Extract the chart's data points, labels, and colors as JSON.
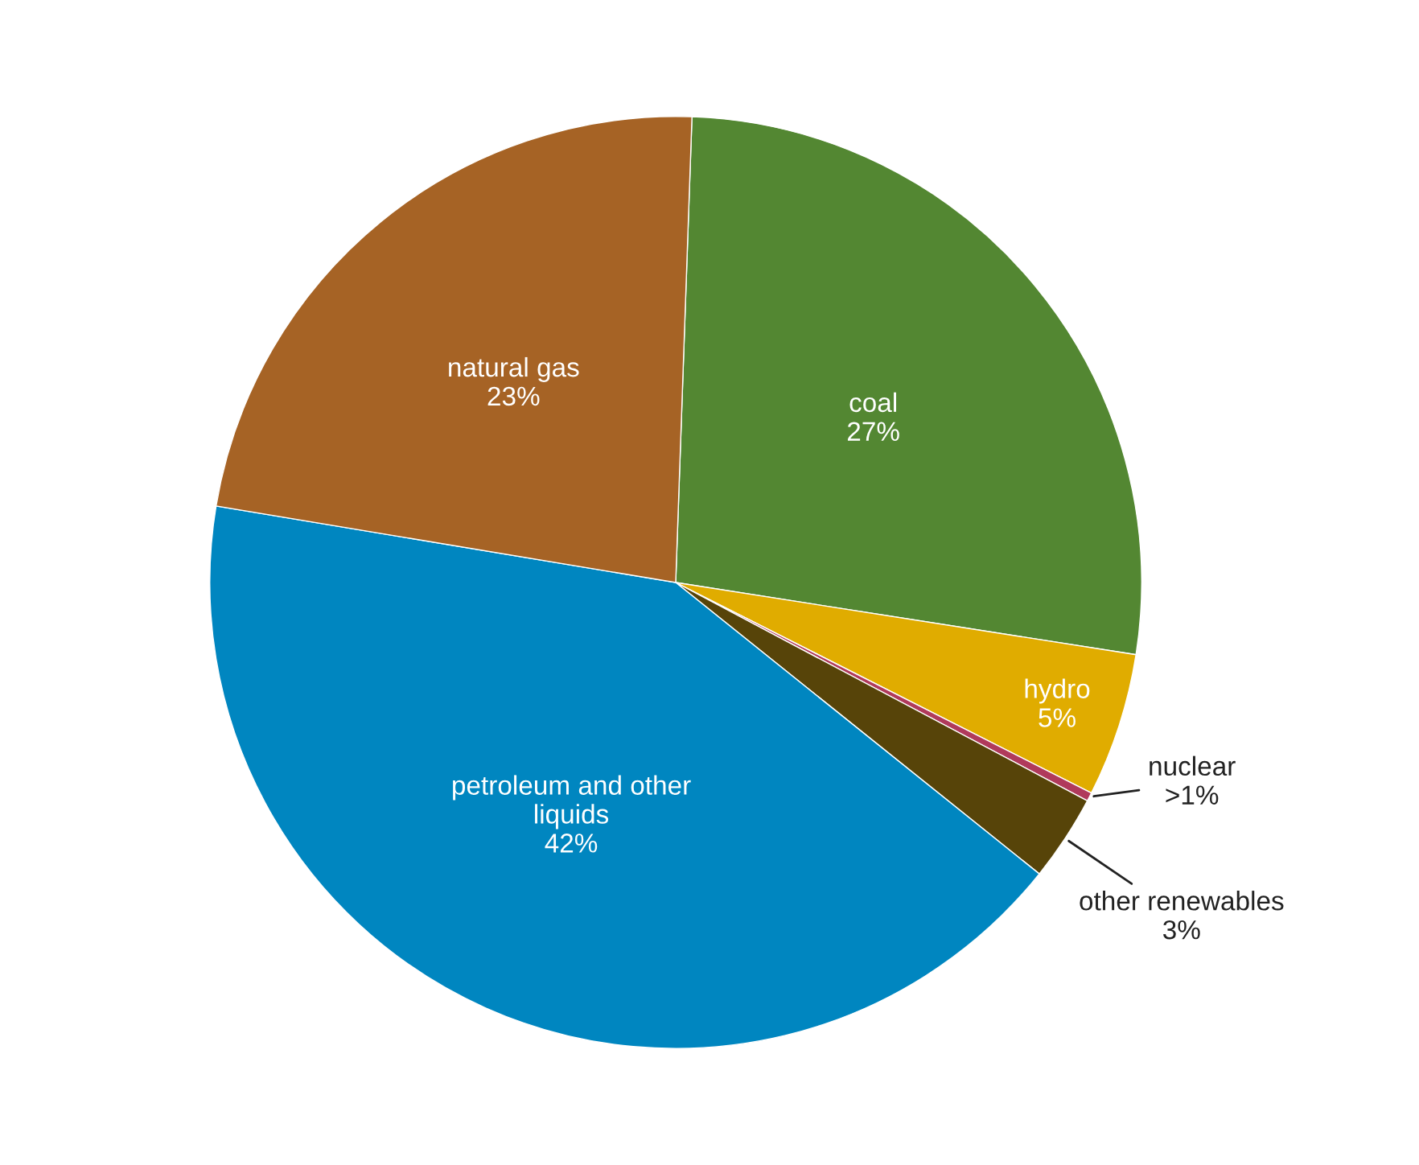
{
  "chart_data": {
    "type": "pie",
    "categories": [
      "coal",
      "hydro",
      "nuclear",
      "other renewables",
      "petroleum and other\nliquids",
      "natural gas"
    ],
    "values": [
      27,
      5,
      0.3,
      3,
      42,
      23
    ],
    "value_labels": [
      "27%",
      "5%",
      ">1%",
      "3%",
      "42%",
      "23%"
    ],
    "colors": [
      "#538732",
      "#e0ac00",
      "#b03a5b",
      "#574409",
      "#0086c0",
      "#a66325"
    ]
  }
}
